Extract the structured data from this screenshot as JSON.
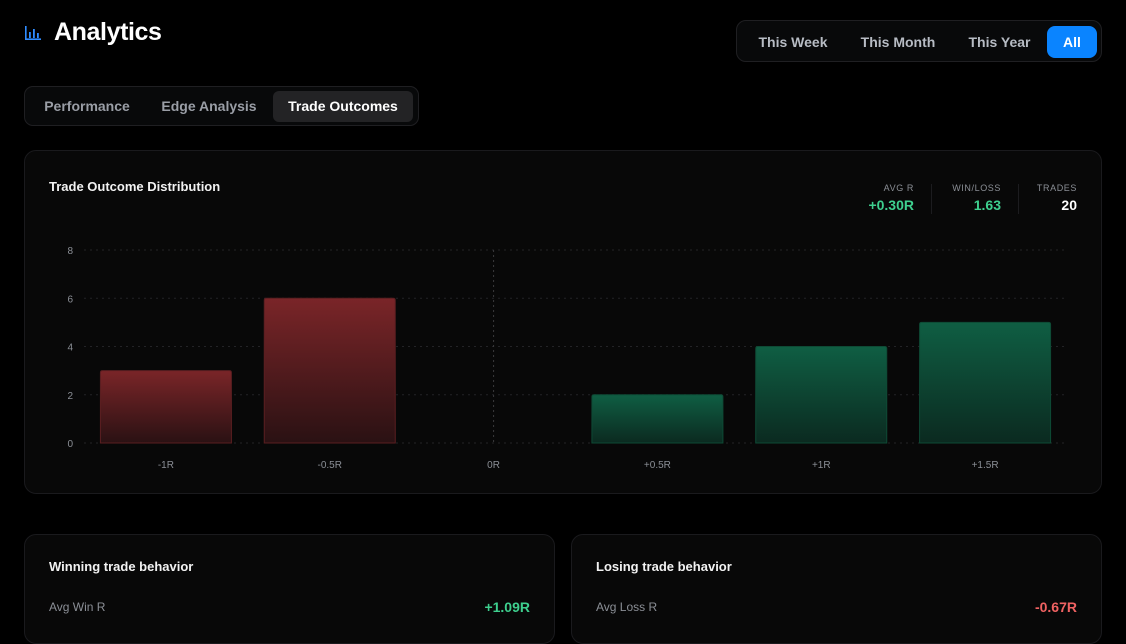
{
  "header": {
    "title": "Analytics",
    "icon": "bar-chart-icon"
  },
  "range_filter": {
    "options": [
      "This Week",
      "This Month",
      "This Year",
      "All"
    ],
    "active": "All"
  },
  "tabs": {
    "items": [
      "Performance",
      "Edge Analysis",
      "Trade Outcomes"
    ],
    "active": "Trade Outcomes"
  },
  "distribution": {
    "title": "Trade Outcome Distribution",
    "stats": [
      {
        "label": "AVG R",
        "value": "+0.30R",
        "color": "#3ecf8e"
      },
      {
        "label": "WIN/LOSS",
        "value": "1.63",
        "color": "#3ecf8e"
      },
      {
        "label": "TRADES",
        "value": "20",
        "color": "#ffffff"
      }
    ]
  },
  "chart_data": {
    "type": "bar",
    "categories": [
      "-1R",
      "-0.5R",
      "0R",
      "+0.5R",
      "+1R",
      "+1.5R"
    ],
    "values": [
      3,
      6,
      0,
      2,
      4,
      5
    ],
    "ylim": [
      0,
      8
    ],
    "yticks": [
      0,
      2,
      4,
      6,
      8
    ],
    "grid": true,
    "colors": {
      "loss": "#7a2528",
      "win": "#0f5e43",
      "zero_line": "#3a3a3d"
    }
  },
  "winning": {
    "title": "Winning trade behavior",
    "label": "Avg Win R",
    "value": "+1.09R",
    "color": "#3ecf8e"
  },
  "losing": {
    "title": "Losing trade behavior",
    "label": "Avg Loss R",
    "value": "-0.67R",
    "color": "#f06262"
  }
}
